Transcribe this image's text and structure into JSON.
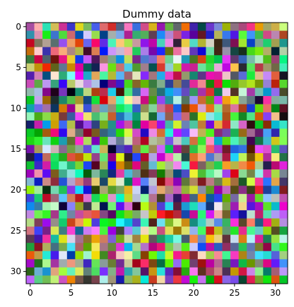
{
  "chart_data": {
    "type": "heatmap",
    "title": "Dummy data",
    "xlabel": "",
    "ylabel": "",
    "rows": 32,
    "cols": 32,
    "value_encoding": "random RGB color per cell (values not individually labeled)",
    "xlim": [
      -0.5,
      31.5
    ],
    "ylim": [
      31.5,
      -0.5
    ],
    "x_ticks": [
      0,
      5,
      10,
      15,
      20,
      25,
      30
    ],
    "y_ticks": [
      0,
      5,
      10,
      15,
      20,
      25,
      30
    ],
    "x_tick_labels": [
      "0",
      "5",
      "10",
      "15",
      "20",
      "25",
      "30"
    ],
    "y_tick_labels": [
      "0",
      "5",
      "10",
      "15",
      "20",
      "25",
      "30"
    ],
    "grid": false,
    "legend": "none"
  }
}
